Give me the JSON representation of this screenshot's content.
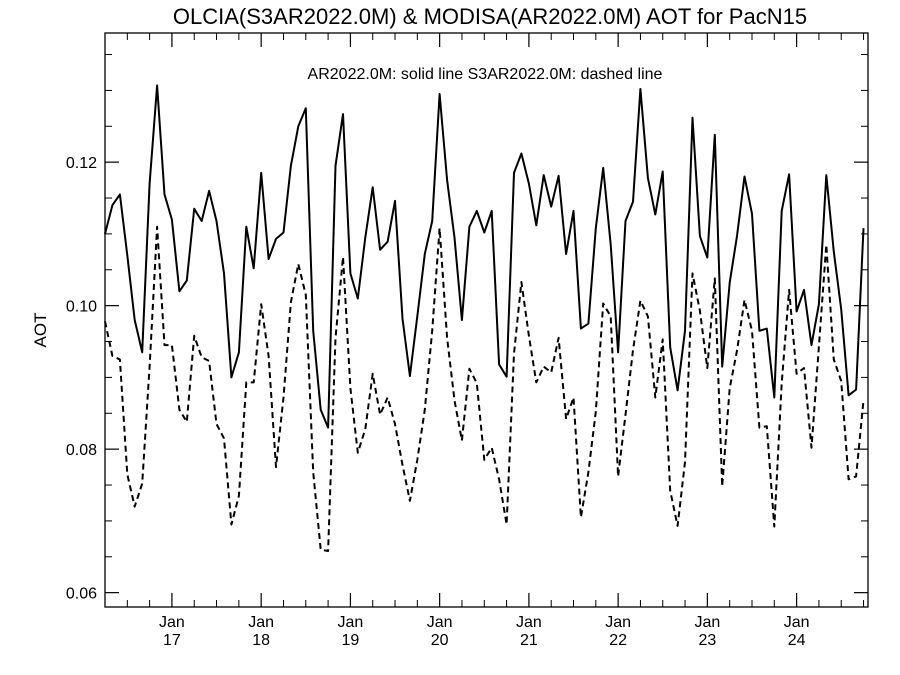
{
  "chart_data": {
    "type": "line",
    "title": "OLCIA(S3AR2022.0M) & MODISA(AR2022.0M)  AOT for PacN15",
    "annotation": "AR2022.0M: solid line   S3AR2022.0M: dashed line",
    "xlabel": "",
    "ylabel": "AOT",
    "ylim": [
      0.058,
      0.138
    ],
    "xlim": [
      2016.25,
      2024.8
    ],
    "grid": false,
    "yticks": [
      0.06,
      0.08,
      0.1,
      0.12
    ],
    "ytick_labels": [
      "0.06",
      "0.08",
      "0.10",
      "0.12"
    ],
    "xticks": [
      {
        "value": 2017,
        "month": "Jan",
        "year": "17"
      },
      {
        "value": 2018,
        "month": "Jan",
        "year": "18"
      },
      {
        "value": 2019,
        "month": "Jan",
        "year": "19"
      },
      {
        "value": 2020,
        "month": "Jan",
        "year": "20"
      },
      {
        "value": 2021,
        "month": "Jan",
        "year": "21"
      },
      {
        "value": 2022,
        "month": "Jan",
        "year": "22"
      },
      {
        "value": 2023,
        "month": "Jan",
        "year": "23"
      },
      {
        "value": 2024,
        "month": "Jan",
        "year": "24"
      }
    ],
    "x_start": 2016.25,
    "x_step": 0.08333,
    "series": [
      {
        "name": "AR2022.0M",
        "style": "solid",
        "values": [
          0.11,
          0.114,
          0.1155,
          0.107,
          0.098,
          0.0935,
          0.117,
          0.1307,
          0.1155,
          0.112,
          0.102,
          0.1035,
          0.1135,
          0.1118,
          0.116,
          0.1118,
          0.1045,
          0.09,
          0.0935,
          0.111,
          0.1052,
          0.1185,
          0.1065,
          0.1093,
          0.1102,
          0.1195,
          0.125,
          0.1275,
          0.0965,
          0.0855,
          0.083,
          0.1195,
          0.1267,
          0.1045,
          0.101,
          0.1095,
          0.1165,
          0.1078,
          0.1089,
          0.1146,
          0.0982,
          0.0902,
          0.0985,
          0.1072,
          0.1118,
          0.1295,
          0.1175,
          0.1095,
          0.098,
          0.111,
          0.1132,
          0.1102,
          0.1132,
          0.0918,
          0.0901,
          0.1185,
          0.1212,
          0.117,
          0.1112,
          0.1182,
          0.1138,
          0.1181,
          0.1072,
          0.1132,
          0.0968,
          0.0975,
          0.1108,
          0.1192,
          0.1085,
          0.0935,
          0.1118,
          0.1145,
          0.1302,
          0.1178,
          0.1127,
          0.1187,
          0.0942,
          0.0882,
          0.0965,
          0.1262,
          0.1097,
          0.1067,
          0.1238,
          0.0915,
          0.1032,
          0.1098,
          0.118,
          0.1128,
          0.0965,
          0.0968,
          0.0872,
          0.1132,
          0.1183,
          0.0992,
          0.1022,
          0.0945,
          0.1002,
          0.1182,
          0.1075,
          0.0995,
          0.0875,
          0.0883,
          0.1108
        ]
      },
      {
        "name": "S3AR2022.0M",
        "style": "dashed",
        "values": [
          0.0978,
          0.093,
          0.0925,
          0.0765,
          0.072,
          0.0752,
          0.0915,
          0.111,
          0.0945,
          0.0945,
          0.0855,
          0.0838,
          0.0958,
          0.0928,
          0.0923,
          0.0835,
          0.0815,
          0.0695,
          0.0735,
          0.0893,
          0.0893,
          0.1002,
          0.093,
          0.0775,
          0.0872,
          0.1005,
          0.1058,
          0.1015,
          0.0768,
          0.066,
          0.0658,
          0.0955,
          0.1068,
          0.0885,
          0.0795,
          0.0828,
          0.0905,
          0.0848,
          0.0872,
          0.0835,
          0.0778,
          0.0728,
          0.0785,
          0.0855,
          0.0965,
          0.1108,
          0.0955,
          0.0868,
          0.0812,
          0.0912,
          0.0892,
          0.0785,
          0.0802,
          0.0758,
          0.0695,
          0.0933,
          0.1033,
          0.0958,
          0.0893,
          0.0915,
          0.0907,
          0.0955,
          0.0842,
          0.0872,
          0.0705,
          0.0768,
          0.0852,
          0.1003,
          0.0985,
          0.0762,
          0.0848,
          0.0938,
          0.1007,
          0.0985,
          0.0872,
          0.0953,
          0.0742,
          0.0693,
          0.0782,
          0.1045,
          0.0993,
          0.0913,
          0.1038,
          0.0748,
          0.0885,
          0.0938,
          0.1008,
          0.0965,
          0.083,
          0.0832,
          0.0692,
          0.0892,
          0.1022,
          0.0905,
          0.0913,
          0.0802,
          0.0943,
          0.1085,
          0.0925,
          0.0895,
          0.0758,
          0.0762,
          0.0868
        ]
      }
    ]
  }
}
